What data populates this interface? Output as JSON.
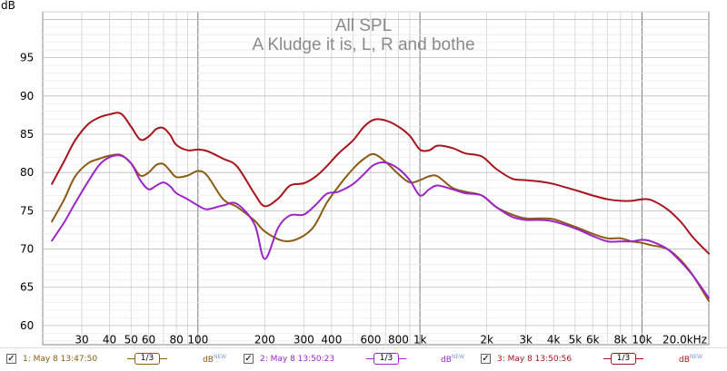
{
  "chart_data": {
    "type": "line",
    "title": "All SPL",
    "subtitle": "A Kludge it is, L, R and bothe",
    "ylabel": "dB",
    "x_scale": "log",
    "xlim": [
      20,
      20000
    ],
    "ylim": [
      57.5,
      101
    ],
    "grid": true,
    "legend": "bottom",
    "y_ticks": [
      {
        "value": 95,
        "label": "95"
      },
      {
        "value": 90,
        "label": "90"
      },
      {
        "value": 85,
        "label": "85"
      },
      {
        "value": 80,
        "label": "80"
      },
      {
        "value": 75,
        "label": "75"
      },
      {
        "value": 70,
        "label": "70"
      },
      {
        "value": 65,
        "label": "65"
      },
      {
        "value": 60,
        "label": "60"
      }
    ],
    "x_ticks": [
      {
        "value": 30,
        "label": "30"
      },
      {
        "value": 40,
        "label": "40"
      },
      {
        "value": 50,
        "label": "50"
      },
      {
        "value": 60,
        "label": "60"
      },
      {
        "value": 80,
        "label": "80"
      },
      {
        "value": 100,
        "label": "100"
      },
      {
        "value": 200,
        "label": "200"
      },
      {
        "value": 300,
        "label": "300"
      },
      {
        "value": 400,
        "label": "400"
      },
      {
        "value": 600,
        "label": "600"
      },
      {
        "value": 800,
        "label": "800"
      },
      {
        "value": 1000,
        "label": "1k"
      },
      {
        "value": 2000,
        "label": "2k"
      },
      {
        "value": 3000,
        "label": "3k"
      },
      {
        "value": 4000,
        "label": "4k"
      },
      {
        "value": 5000,
        "label": "5k"
      },
      {
        "value": 6000,
        "label": "6k"
      },
      {
        "value": 8000,
        "label": "8k"
      },
      {
        "value": 10000,
        "label": "10k"
      },
      {
        "value": 20000,
        "label": "20.0kHz"
      }
    ],
    "series": [
      {
        "name": "1: May 8 13:47:50",
        "color": "#8b5a14",
        "x": [
          22,
          25,
          28,
          32,
          36,
          40,
          45,
          50,
          55,
          60,
          65,
          70,
          75,
          80,
          90,
          100,
          110,
          130,
          150,
          180,
          200,
          240,
          280,
          330,
          380,
          430,
          500,
          560,
          620,
          700,
          800,
          900,
          1000,
          1100,
          1200,
          1400,
          1600,
          1900,
          2200,
          2600,
          3000,
          3500,
          4000,
          5000,
          6000,
          7000,
          8000,
          9000,
          10000,
          11000,
          13000,
          15000,
          17000,
          20000
        ],
        "y": [
          73.6,
          76.5,
          79.5,
          81.2,
          81.8,
          82.2,
          82.3,
          81.2,
          79.6,
          80.0,
          81.0,
          81.1,
          80.2,
          79.4,
          79.6,
          80.2,
          79.6,
          76.5,
          75.5,
          73.7,
          72.3,
          71.1,
          71.3,
          72.8,
          76.0,
          78.2,
          80.5,
          81.8,
          82.4,
          81.4,
          79.8,
          78.7,
          79.0,
          79.5,
          79.5,
          78.0,
          77.5,
          77.0,
          75.5,
          74.5,
          74.0,
          74.0,
          73.9,
          72.9,
          72.0,
          71.4,
          71.4,
          71.0,
          70.8,
          70.5,
          70.0,
          68.5,
          66.5,
          63.2
        ]
      },
      {
        "name": "2: May 8 13:50:23",
        "color": "#9d25c8",
        "x": [
          22,
          25,
          28,
          32,
          36,
          40,
          45,
          50,
          55,
          60,
          65,
          70,
          75,
          80,
          90,
          100,
          110,
          130,
          150,
          180,
          200,
          230,
          260,
          300,
          340,
          380,
          430,
          500,
          560,
          620,
          700,
          800,
          900,
          1000,
          1100,
          1200,
          1400,
          1600,
          1900,
          2200,
          2600,
          3000,
          3500,
          4000,
          5000,
          6000,
          7000,
          8000,
          9000,
          10000,
          11000,
          13000,
          15000,
          17000,
          20000
        ],
        "y": [
          71.1,
          73.5,
          76.0,
          78.8,
          81.0,
          82.0,
          82.2,
          81.2,
          79.0,
          77.8,
          78.3,
          78.7,
          78.2,
          77.3,
          76.5,
          75.7,
          75.2,
          75.7,
          75.9,
          73.2,
          68.7,
          72.8,
          74.4,
          74.5,
          75.8,
          77.2,
          77.5,
          78.5,
          79.8,
          81.0,
          81.3,
          80.5,
          79.0,
          77.0,
          77.8,
          78.3,
          77.8,
          77.3,
          77.0,
          75.5,
          74.2,
          73.8,
          73.8,
          73.6,
          72.7,
          71.7,
          71.0,
          71.0,
          71.0,
          71.2,
          71.0,
          70.0,
          68.3,
          66.5,
          63.6
        ]
      },
      {
        "name": "3: May 8 13:50:56",
        "color": "#a8141c",
        "x": [
          22,
          25,
          28,
          32,
          36,
          40,
          45,
          50,
          55,
          60,
          65,
          70,
          75,
          80,
          90,
          100,
          110,
          130,
          150,
          180,
          200,
          230,
          260,
          300,
          340,
          380,
          430,
          500,
          560,
          620,
          700,
          800,
          900,
          1000,
          1100,
          1200,
          1400,
          1600,
          1900,
          2200,
          2600,
          3000,
          3500,
          4000,
          5000,
          6000,
          7000,
          8000,
          9000,
          10000,
          11000,
          13000,
          15000,
          17000,
          20000
        ],
        "y": [
          78.5,
          81.5,
          84.2,
          86.3,
          87.2,
          87.6,
          87.7,
          86.0,
          84.3,
          84.7,
          85.7,
          85.8,
          84.9,
          83.6,
          82.9,
          83.0,
          82.8,
          81.8,
          80.8,
          77.2,
          75.6,
          76.6,
          78.3,
          78.6,
          79.5,
          80.8,
          82.5,
          84.2,
          86.0,
          86.9,
          86.8,
          86.0,
          84.8,
          83.0,
          82.9,
          83.5,
          83.2,
          82.5,
          82.1,
          80.5,
          79.2,
          79.0,
          78.8,
          78.5,
          77.7,
          77.0,
          76.5,
          76.3,
          76.3,
          76.5,
          76.4,
          75.2,
          73.5,
          71.5,
          69.4
        ]
      }
    ]
  },
  "legend": {
    "entries": [
      {
        "checkbox": "✓",
        "label": "1: May 8 13:47:50",
        "smoothing": "1/3",
        "unit": "dB",
        "unit_tag": "NEW",
        "color": "#8b5a14"
      },
      {
        "checkbox": "✓",
        "label": "2: May 8 13:50:23",
        "smoothing": "1/3",
        "unit": "dB",
        "unit_tag": "NEW",
        "color": "#9d25c8"
      },
      {
        "checkbox": "✓",
        "label": "3: May 8 13:50:56",
        "smoothing": "1/3",
        "unit": "dB",
        "unit_tag": "NEW",
        "color": "#a8141c"
      }
    ]
  }
}
